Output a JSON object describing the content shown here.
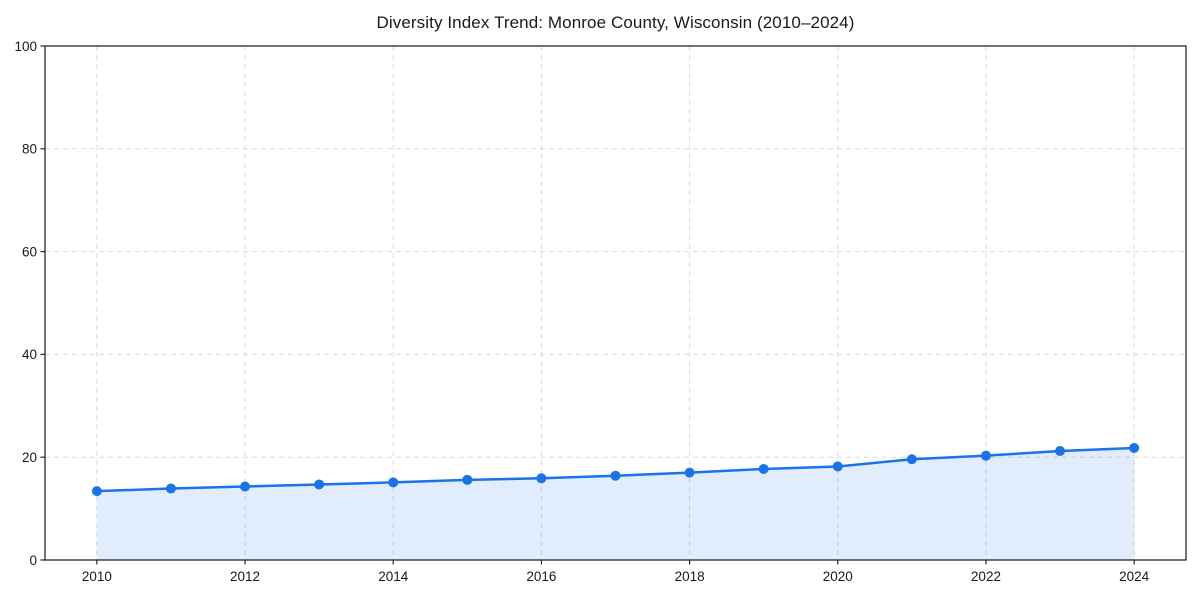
{
  "chart_data": {
    "type": "area",
    "title": "Diversity Index Trend: Monroe County, Wisconsin (2010–2024)",
    "xlabel": "",
    "ylabel": "",
    "x": [
      2010,
      2011,
      2012,
      2013,
      2014,
      2015,
      2016,
      2017,
      2018,
      2019,
      2020,
      2021,
      2022,
      2023,
      2024
    ],
    "series": [
      {
        "name": "Diversity Index",
        "values": [
          13.4,
          13.9,
          14.3,
          14.7,
          15.1,
          15.6,
          15.9,
          16.4,
          17.0,
          17.7,
          18.2,
          19.6,
          20.3,
          21.2,
          21.8
        ]
      }
    ],
    "xlim": [
      2009.3,
      2024.7
    ],
    "ylim": [
      0,
      100
    ],
    "xticks": [
      2010,
      2012,
      2014,
      2016,
      2018,
      2020,
      2022,
      2024
    ],
    "yticks": [
      0,
      20,
      40,
      60,
      80,
      100
    ],
    "grid": true,
    "grid_style": "dashed",
    "legend": "none",
    "colors": {
      "line": "#1a73e8",
      "marker": "#1a73e8",
      "fill": "rgba(26,115,232,0.13)",
      "grid": "#d9d9d9",
      "spine": "#262626",
      "text": "#1a1a1a",
      "background": "#ffffff"
    }
  }
}
